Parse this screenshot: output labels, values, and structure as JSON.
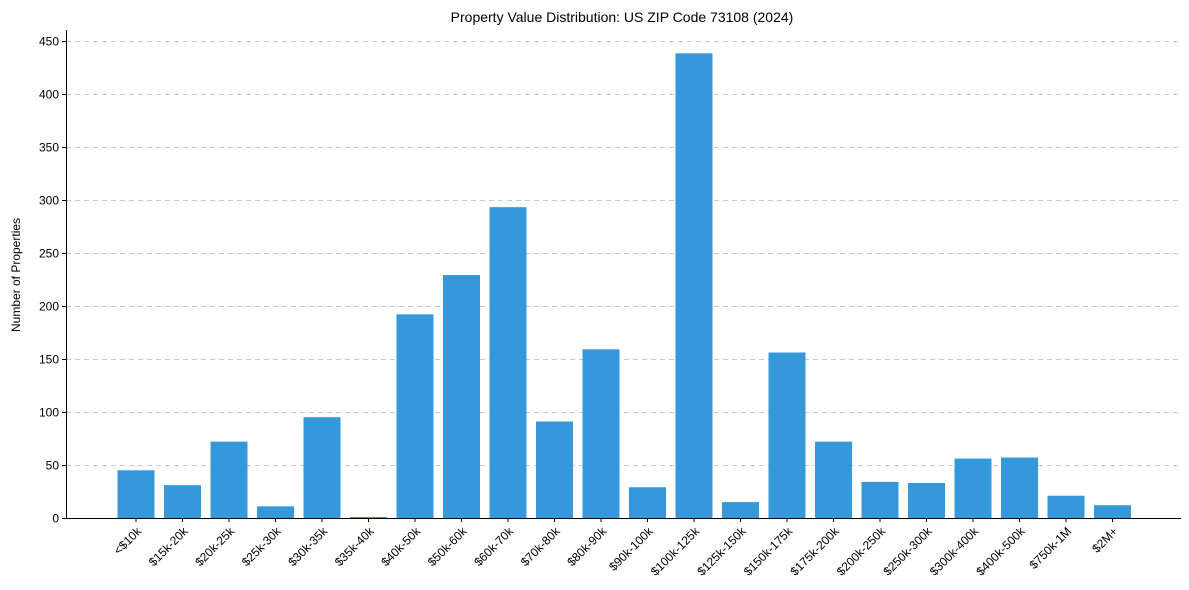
{
  "chart_data": {
    "type": "bar",
    "title": "Property Value Distribution: US ZIP Code 73108 (2024)",
    "xlabel": "",
    "ylabel": "Number of Properties",
    "ylim": [
      0,
      460
    ],
    "yticks": [
      0,
      50,
      100,
      150,
      200,
      250,
      300,
      350,
      400,
      450
    ],
    "grid": "y-dashed",
    "bar_color": "#3498db",
    "categories": [
      "<$10k",
      "$15k-20k",
      "$20k-25k",
      "$25k-30k",
      "$30k-35k",
      "$35k-40k",
      "$40k-50k",
      "$50k-60k",
      "$60k-70k",
      "$70k-80k",
      "$80k-90k",
      "$90k-100k",
      "$100k-125k",
      "$125k-150k",
      "$150k-175k",
      "$175k-200k",
      "$200k-250k",
      "$250k-300k",
      "$300k-400k",
      "$400k-500k",
      "$750k-1M",
      "$2M+"
    ],
    "values": [
      45,
      31,
      72,
      11,
      95,
      1,
      192,
      229,
      293,
      91,
      159,
      29,
      438,
      15,
      156,
      72,
      34,
      33,
      56,
      57,
      21,
      12
    ]
  }
}
